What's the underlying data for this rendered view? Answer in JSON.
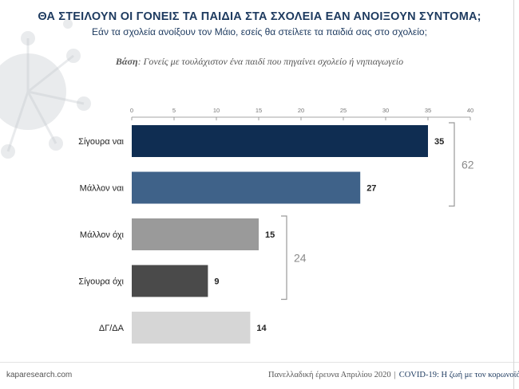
{
  "header": {
    "title": "ΘΑ ΣΤΕΙΛΟΥΝ ΟΙ ΓΟΝΕΙΣ ΤΑ ΠΑΙΔΙΑ ΣΤΑ ΣΧΟΛΕΙΑ ΕΑΝ ΑΝΟΙΞΟΥΝ ΣΥΝΤΟΜΑ;",
    "subtitle": "Εάν τα σχολεία ανοίξουν τον Μάιο, εσείς θα στείλετε τα παιδιά σας στο σχολείο;",
    "base_label": "Βάση",
    "base_text": ": Γονείς με τουλάχιστον ένα παιδί που πηγαίνει σχολείο ή νηπιαγωγείο"
  },
  "chart_data": {
    "type": "bar",
    "orientation": "horizontal",
    "categories": [
      "Σίγουρα ναι",
      "Μάλλον ναι",
      "Μάλλον όχι",
      "Σίγουρα όχι",
      "ΔΓ/ΔΑ"
    ],
    "values": [
      35,
      27,
      15,
      9,
      14
    ],
    "data_labels": [
      "35",
      "27",
      "15",
      "9",
      "14"
    ],
    "bar_colors": [
      "#0f2d52",
      "#3f6289",
      "#9a9a9a",
      "#4a4a4a",
      "#d6d6d6"
    ],
    "xlim": [
      0,
      40
    ],
    "x_ticks": [
      "0",
      "5",
      "10",
      "15",
      "20",
      "25",
      "30",
      "35",
      "40"
    ],
    "x_tick_values": [
      0,
      5,
      10,
      15,
      20,
      25,
      30,
      35,
      40
    ],
    "grid": false,
    "groups": [
      {
        "label": "62",
        "members": [
          "Σίγουρα ναι",
          "Μάλλον ναι"
        ]
      },
      {
        "label": "24",
        "members": [
          "Μάλλον όχι",
          "Σίγουρα όχι"
        ]
      }
    ]
  },
  "footer": {
    "left": "kaparesearch.com",
    "survey": "Πανελλαδική έρευνα Απριλίου 2020",
    "separator": "|",
    "covid": "COVID-19: Η ζωή με τον κορωνοϊό"
  },
  "colors": {
    "title": "#1d3a5f",
    "bracket": "#9a9a9a",
    "group_label": "#8a8a8a",
    "axis": "#888888",
    "decor": "#c3c7cc"
  }
}
